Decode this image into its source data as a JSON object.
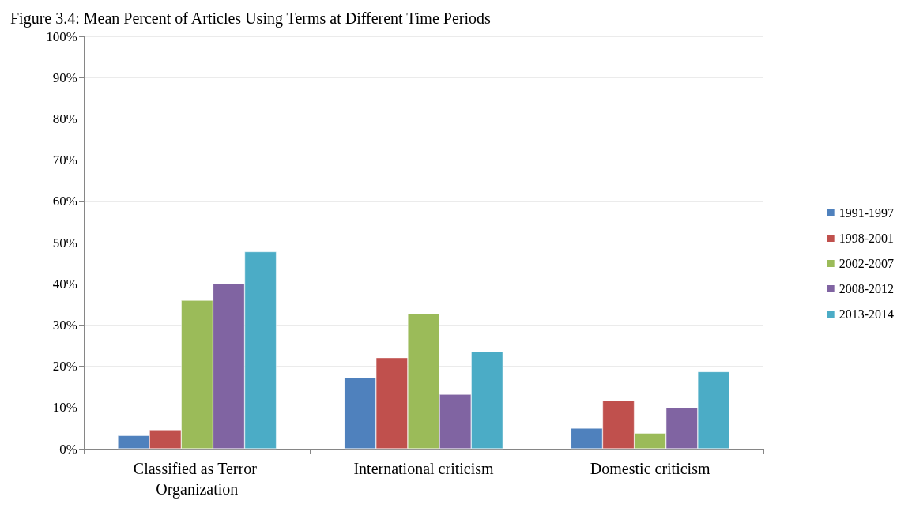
{
  "chart_data": {
    "type": "bar",
    "title": "Figure 3.4: Mean Percent of Articles Using Terms at Different Time Periods",
    "categories": [
      "Classified as Terror Organization",
      "International criticism",
      "Domestic criticism"
    ],
    "series": [
      {
        "name": "1991-1997",
        "color": "#4f81bd",
        "values": [
          3.2,
          17.2,
          5
        ]
      },
      {
        "name": "1998-2001",
        "color": "#c0504d",
        "values": [
          4.6,
          22.1,
          11.7
        ]
      },
      {
        "name": "2002-2007",
        "color": "#9bbb59",
        "values": [
          36,
          32.8,
          3.8
        ]
      },
      {
        "name": "2008-2012",
        "color": "#8064a2",
        "values": [
          40,
          13.2,
          10
        ]
      },
      {
        "name": "2013-2014",
        "color": "#4bacc6",
        "values": [
          47.8,
          23.6,
          18.7
        ]
      }
    ],
    "ylim": [
      0,
      100
    ],
    "yticks": [
      {
        "value": 0,
        "label": "0%"
      },
      {
        "value": 10,
        "label": "10%"
      },
      {
        "value": 20,
        "label": "20%"
      },
      {
        "value": 30,
        "label": "30%"
      },
      {
        "value": 40,
        "label": "40%"
      },
      {
        "value": 50,
        "label": "50%"
      },
      {
        "value": 60,
        "label": "60%"
      },
      {
        "value": 70,
        "label": "70%"
      },
      {
        "value": 80,
        "label": "80%"
      },
      {
        "value": 90,
        "label": "90%"
      },
      {
        "value": 100,
        "label": "100%"
      }
    ],
    "grid": "y",
    "legend": "right"
  }
}
